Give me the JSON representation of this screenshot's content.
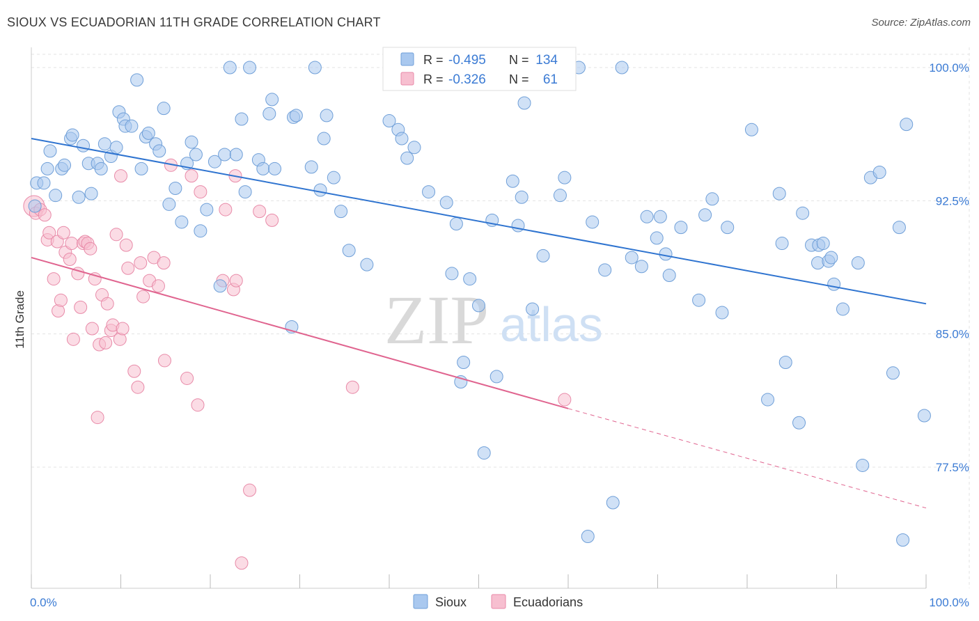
{
  "title": "SIOUX VS ECUADORIAN 11TH GRADE CORRELATION CHART",
  "source": "Source: ZipAtlas.com",
  "watermark": {
    "zip": "ZIP",
    "atlas": "atlas"
  },
  "colors": {
    "sioux_fill": "#a9c8ef",
    "sioux_stroke": "#6f9fd8",
    "sioux_line": "#2f74d0",
    "ecu_fill": "#f7bfd0",
    "ecu_stroke": "#e88aa8",
    "ecu_line": "#e0648f",
    "tick_label": "#3b7bd4",
    "grid": "#e3e3e3"
  },
  "legend_top": {
    "rows": [
      {
        "r_label": "R =",
        "r_value": "-0.495",
        "n_label": "N =",
        "n_value": "134"
      },
      {
        "r_label": "R =",
        "r_value": "-0.326",
        "n_label": "N =",
        "n_value": "61"
      }
    ]
  },
  "legend_bottom": {
    "items": [
      "Sioux",
      "Ecuadorians"
    ]
  },
  "chart_data": {
    "type": "scatter",
    "ylabel": "11th Grade",
    "xlabel": "",
    "xlim": [
      0,
      100
    ],
    "ylim": [
      71,
      101
    ],
    "x_tick_labels": [
      {
        "value": 0,
        "label": "0.0%"
      },
      {
        "value": 100,
        "label": "100.0%"
      }
    ],
    "y_tick_labels": [
      {
        "value": 100,
        "label": "100.0%"
      },
      {
        "value": 92.5,
        "label": "92.5%"
      },
      {
        "value": 85,
        "label": "85.0%"
      },
      {
        "value": 77.5,
        "label": "77.5%"
      }
    ],
    "grid": true,
    "series": [
      {
        "name": "Sioux",
        "trend": {
          "x": [
            0,
            100
          ],
          "y": [
            96.0,
            86.7
          ]
        },
        "points": [
          [
            0.4,
            92.2
          ],
          [
            0.6,
            93.5
          ],
          [
            1.4,
            93.5
          ],
          [
            1.8,
            94.3
          ],
          [
            2.1,
            95.3
          ],
          [
            2.7,
            92.8
          ],
          [
            3.4,
            94.3
          ],
          [
            3.7,
            94.5
          ],
          [
            4.4,
            96.0
          ],
          [
            4.6,
            96.2
          ],
          [
            5.3,
            92.7
          ],
          [
            5.8,
            95.6
          ],
          [
            6.4,
            94.6
          ],
          [
            6.7,
            92.9
          ],
          [
            7.4,
            94.6
          ],
          [
            7.8,
            94.3
          ],
          [
            8.2,
            95.7
          ],
          [
            8.9,
            95.0
          ],
          [
            9.5,
            95.5
          ],
          [
            9.8,
            97.5
          ],
          [
            10.3,
            97.1
          ],
          [
            10.5,
            96.7
          ],
          [
            11.2,
            96.7
          ],
          [
            11.8,
            99.3
          ],
          [
            12.3,
            94.3
          ],
          [
            12.8,
            96.1
          ],
          [
            13.1,
            96.3
          ],
          [
            13.9,
            95.7
          ],
          [
            14.3,
            95.3
          ],
          [
            14.8,
            97.7
          ],
          [
            15.4,
            92.3
          ],
          [
            16.1,
            93.2
          ],
          [
            16.8,
            91.3
          ],
          [
            17.4,
            94.6
          ],
          [
            17.9,
            95.8
          ],
          [
            18.4,
            95.1
          ],
          [
            18.9,
            90.8
          ],
          [
            19.6,
            92.0
          ],
          [
            20.5,
            94.7
          ],
          [
            21.1,
            87.7
          ],
          [
            21.6,
            95.1
          ],
          [
            22.2,
            100.0
          ],
          [
            22.9,
            95.1
          ],
          [
            23.5,
            97.1
          ],
          [
            23.9,
            93.0
          ],
          [
            24.4,
            100.0
          ],
          [
            25.4,
            94.8
          ],
          [
            25.9,
            94.3
          ],
          [
            26.6,
            97.4
          ],
          [
            26.9,
            98.2
          ],
          [
            27.2,
            94.3
          ],
          [
            29.3,
            97.2
          ],
          [
            29.6,
            97.3
          ],
          [
            29.1,
            85.4
          ],
          [
            31.3,
            94.4
          ],
          [
            31.7,
            100.0
          ],
          [
            32.3,
            93.1
          ],
          [
            32.7,
            96.0
          ],
          [
            33.0,
            97.3
          ],
          [
            33.8,
            93.8
          ],
          [
            34.6,
            91.9
          ],
          [
            35.5,
            89.7
          ],
          [
            37.5,
            88.9
          ],
          [
            40.0,
            97.0
          ],
          [
            41.0,
            96.5
          ],
          [
            41.4,
            96.0
          ],
          [
            42.0,
            94.9
          ],
          [
            42.8,
            95.5
          ],
          [
            44.4,
            93.0
          ],
          [
            45.0,
            100.0
          ],
          [
            46.4,
            92.4
          ],
          [
            47.0,
            88.4
          ],
          [
            47.5,
            91.2
          ],
          [
            48.3,
            83.4
          ],
          [
            48.0,
            82.3
          ],
          [
            49.0,
            88.1
          ],
          [
            50.0,
            86.6
          ],
          [
            50.6,
            78.3
          ],
          [
            51.5,
            91.4
          ],
          [
            52.0,
            82.6
          ],
          [
            53.8,
            93.6
          ],
          [
            54.4,
            91.1
          ],
          [
            54.8,
            92.7
          ],
          [
            55.1,
            98.0
          ],
          [
            56.0,
            86.4
          ],
          [
            57.2,
            89.4
          ],
          [
            59.1,
            92.8
          ],
          [
            59.6,
            93.8
          ],
          [
            61.2,
            100.0
          ],
          [
            62.2,
            73.6
          ],
          [
            62.7,
            91.3
          ],
          [
            64.1,
            88.6
          ],
          [
            65.0,
            75.5
          ],
          [
            66.0,
            100.0
          ],
          [
            67.1,
            89.3
          ],
          [
            68.2,
            88.8
          ],
          [
            68.8,
            91.6
          ],
          [
            69.9,
            90.4
          ],
          [
            70.3,
            91.6
          ],
          [
            70.9,
            89.5
          ],
          [
            71.3,
            88.3
          ],
          [
            72.6,
            91.0
          ],
          [
            74.6,
            86.9
          ],
          [
            75.3,
            91.7
          ],
          [
            76.1,
            92.6
          ],
          [
            77.2,
            86.2
          ],
          [
            77.8,
            91.0
          ],
          [
            80.5,
            96.5
          ],
          [
            82.3,
            81.3
          ],
          [
            83.6,
            92.9
          ],
          [
            83.9,
            90.1
          ],
          [
            84.3,
            83.4
          ],
          [
            85.8,
            80.0
          ],
          [
            86.2,
            91.8
          ],
          [
            87.2,
            90.0
          ],
          [
            87.9,
            89.0
          ],
          [
            88.0,
            90.0
          ],
          [
            88.5,
            90.1
          ],
          [
            89.1,
            89.1
          ],
          [
            89.4,
            89.3
          ],
          [
            89.7,
            87.8
          ],
          [
            90.7,
            86.4
          ],
          [
            92.4,
            89.0
          ],
          [
            92.9,
            77.6
          ],
          [
            93.8,
            93.8
          ],
          [
            94.8,
            94.1
          ],
          [
            96.3,
            82.8
          ],
          [
            97.0,
            91.0
          ],
          [
            97.4,
            73.4
          ],
          [
            97.8,
            96.8
          ],
          [
            99.8,
            80.4
          ]
        ]
      },
      {
        "name": "Ecuadorians",
        "trend": {
          "x": [
            0,
            60
          ],
          "y": [
            89.3,
            80.8
          ]
        },
        "trend_dashed": {
          "x": [
            60,
            100
          ],
          "y": [
            80.8,
            75.2
          ]
        },
        "points": [
          [
            0.3,
            92.2
          ],
          [
            0.5,
            91.8
          ],
          [
            1.0,
            92.0
          ],
          [
            1.5,
            91.7
          ],
          [
            1.8,
            90.3
          ],
          [
            2.0,
            90.7
          ],
          [
            2.5,
            88.1
          ],
          [
            2.9,
            90.2
          ],
          [
            3.0,
            86.3
          ],
          [
            3.3,
            86.9
          ],
          [
            3.6,
            90.7
          ],
          [
            3.8,
            89.6
          ],
          [
            4.3,
            89.2
          ],
          [
            4.5,
            90.1
          ],
          [
            4.7,
            84.7
          ],
          [
            5.2,
            88.4
          ],
          [
            5.5,
            86.5
          ],
          [
            5.8,
            90.1
          ],
          [
            6.0,
            90.2
          ],
          [
            6.3,
            90.1
          ],
          [
            6.6,
            89.8
          ],
          [
            6.8,
            85.3
          ],
          [
            7.1,
            88.1
          ],
          [
            7.4,
            80.3
          ],
          [
            7.6,
            84.4
          ],
          [
            7.9,
            87.2
          ],
          [
            8.3,
            84.5
          ],
          [
            8.5,
            86.7
          ],
          [
            8.9,
            85.2
          ],
          [
            9.1,
            85.5
          ],
          [
            9.5,
            90.6
          ],
          [
            9.9,
            84.7
          ],
          [
            10.0,
            93.9
          ],
          [
            10.2,
            85.3
          ],
          [
            10.6,
            90.0
          ],
          [
            10.8,
            88.7
          ],
          [
            11.5,
            82.9
          ],
          [
            11.9,
            82.0
          ],
          [
            12.2,
            89.0
          ],
          [
            12.5,
            87.1
          ],
          [
            13.2,
            88.0
          ],
          [
            13.7,
            89.3
          ],
          [
            14.2,
            87.7
          ],
          [
            14.8,
            89.0
          ],
          [
            14.9,
            83.5
          ],
          [
            15.6,
            94.5
          ],
          [
            17.4,
            82.5
          ],
          [
            17.9,
            93.9
          ],
          [
            18.6,
            81.0
          ],
          [
            18.9,
            93.0
          ],
          [
            21.4,
            88.0
          ],
          [
            21.7,
            92.0
          ],
          [
            22.6,
            87.5
          ],
          [
            22.8,
            93.9
          ],
          [
            22.9,
            88.0
          ],
          [
            23.5,
            72.1
          ],
          [
            24.4,
            76.2
          ],
          [
            25.5,
            91.9
          ],
          [
            26.9,
            91.4
          ],
          [
            35.9,
            82.0
          ],
          [
            59.6,
            81.3
          ]
        ]
      }
    ]
  }
}
